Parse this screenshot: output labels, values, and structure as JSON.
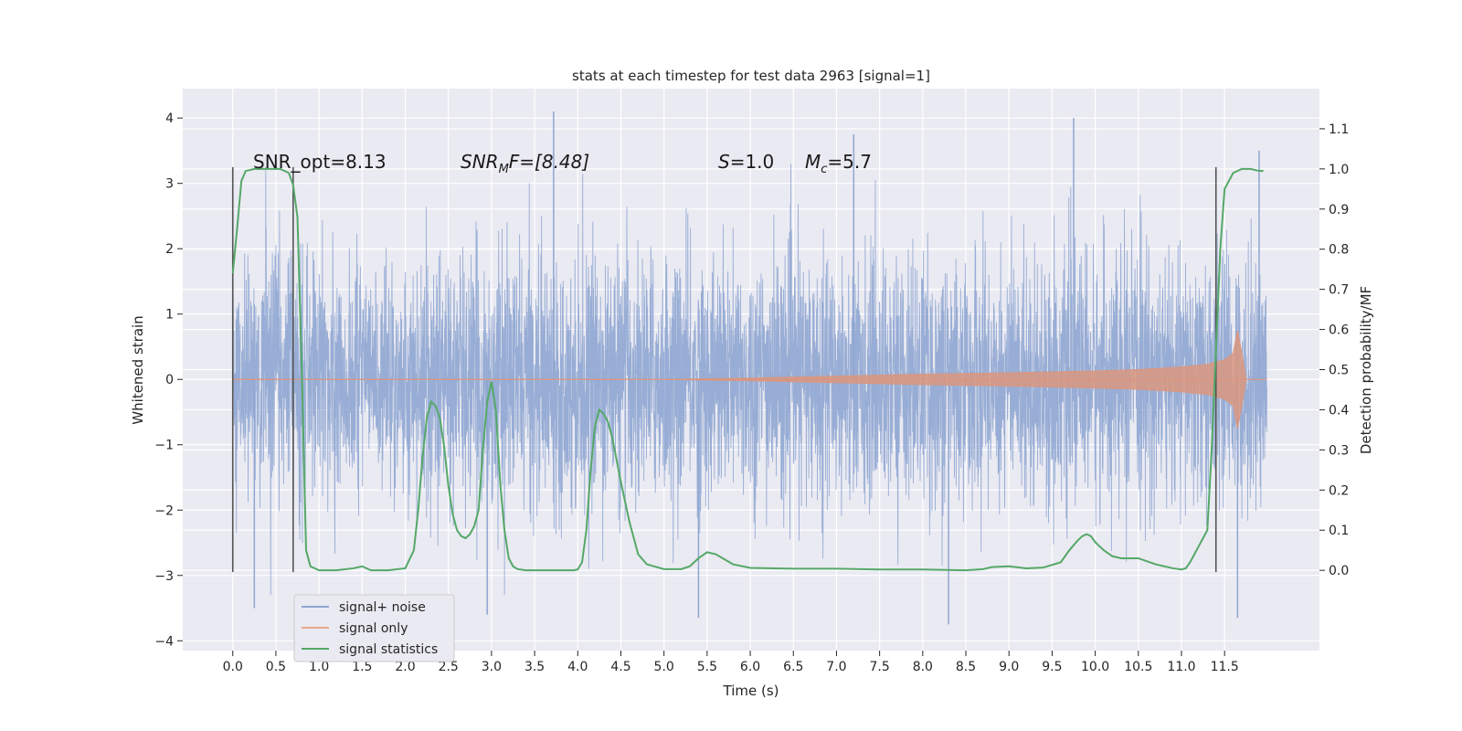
{
  "chart_data": {
    "type": "line",
    "title": "stats at each timestep for test data 2963 [signal=1]",
    "xlabel": "Time (s)",
    "ylabel_left": "Whitened strain",
    "ylabel_right": "Detection probability/MF",
    "xlim": [
      -0.58,
      12.6
    ],
    "ylim_left": [
      -4.15,
      4.45
    ],
    "ylim_right": [
      -0.2,
      1.2
    ],
    "xticks": [
      "0.0",
      "0.5",
      "1.0",
      "1.5",
      "2.0",
      "2.5",
      "3.0",
      "3.5",
      "4.0",
      "4.5",
      "5.0",
      "5.5",
      "6.0",
      "6.5",
      "7.0",
      "7.5",
      "8.0",
      "8.5",
      "9.0",
      "9.5",
      "10.0",
      "10.5",
      "11.0",
      "11.5"
    ],
    "yticks_left": [
      "4",
      "3",
      "2",
      "1",
      "0",
      "−1",
      "−2",
      "−3",
      "−4"
    ],
    "yticks_right": [
      "1.1",
      "1.0",
      "0.9",
      "0.8",
      "0.7",
      "0.6",
      "0.5",
      "0.4",
      "0.3",
      "0.2",
      "0.1",
      "0.0"
    ],
    "grid": true,
    "legend_placement": "lower-left",
    "annotations": {
      "snr_opt": "SNR_opt=8.13",
      "snr_mf_prefix": "SNR",
      "snr_mf_sub": "M",
      "snr_mf_rest": "F=[8.48]",
      "s_symbol": "S",
      "s_value": "=1.0",
      "mc_symbol": "M",
      "mc_sub": "c",
      "mc_value": "=5.7"
    },
    "series": [
      {
        "name": "signal+ noise",
        "color": "#8fa6d1",
        "description_units": "whitened strain, left axis",
        "x_range": [
          0.0,
          11.99
        ],
        "typical_envelope": [
          -2.4,
          2.4
        ],
        "extreme_values": [
          {
            "x": 0.25,
            "y": -3.5
          },
          {
            "x": 2.95,
            "y": -3.6
          },
          {
            "x": 3.72,
            "y": 4.1
          },
          {
            "x": 5.4,
            "y": -3.65
          },
          {
            "x": 7.2,
            "y": 3.75
          },
          {
            "x": 8.3,
            "y": -3.75
          },
          {
            "x": 9.75,
            "y": 4.0
          },
          {
            "x": 11.65,
            "y": -3.65
          },
          {
            "x": 11.9,
            "y": 3.5
          }
        ]
      },
      {
        "name": "signal only",
        "color": "#dd8452",
        "description_units": "whitened strain envelope, left axis",
        "x": [
          0.0,
          5.0,
          6.0,
          7.0,
          8.0,
          9.0,
          10.0,
          10.5,
          11.0,
          11.3,
          11.5,
          11.6,
          11.65,
          11.7,
          11.75
        ],
        "amplitude": [
          0.0,
          0.0,
          0.02,
          0.05,
          0.08,
          0.1,
          0.13,
          0.15,
          0.19,
          0.23,
          0.3,
          0.4,
          0.75,
          0.4,
          0.0
        ]
      },
      {
        "name": "signal statistics",
        "color": "#55a868",
        "description_units": "detection probability, right axis",
        "x": [
          0.0,
          0.05,
          0.1,
          0.15,
          0.25,
          0.4,
          0.55,
          0.65,
          0.7,
          0.75,
          0.8,
          0.85,
          0.9,
          1.0,
          1.2,
          1.4,
          1.5,
          1.6,
          1.8,
          2.0,
          2.1,
          2.15,
          2.2,
          2.25,
          2.3,
          2.35,
          2.4,
          2.45,
          2.5,
          2.55,
          2.6,
          2.65,
          2.7,
          2.75,
          2.8,
          2.85,
          2.9,
          2.95,
          3.0,
          3.05,
          3.1,
          3.15,
          3.2,
          3.25,
          3.3,
          3.4,
          3.6,
          3.8,
          3.95,
          4.0,
          4.05,
          4.1,
          4.15,
          4.2,
          4.25,
          4.3,
          4.35,
          4.4,
          4.5,
          4.6,
          4.7,
          4.8,
          5.0,
          5.2,
          5.3,
          5.4,
          5.5,
          5.6,
          5.8,
          6.0,
          6.5,
          7.0,
          7.5,
          8.0,
          8.5,
          8.7,
          8.8,
          9.0,
          9.2,
          9.4,
          9.6,
          9.7,
          9.8,
          9.85,
          9.9,
          9.95,
          10.0,
          10.1,
          10.2,
          10.3,
          10.5,
          10.7,
          10.9,
          11.0,
          11.05,
          11.1,
          11.15,
          11.2,
          11.25,
          11.3,
          11.35,
          11.4,
          11.45,
          11.5,
          11.6,
          11.7,
          11.8,
          11.9,
          11.95
        ],
        "y": [
          0.74,
          0.85,
          0.97,
          0.995,
          1.0,
          1.0,
          1.0,
          0.99,
          0.96,
          0.88,
          0.5,
          0.05,
          0.01,
          0.0,
          0.0,
          0.005,
          0.01,
          0.0,
          0.0,
          0.005,
          0.05,
          0.15,
          0.28,
          0.38,
          0.42,
          0.41,
          0.38,
          0.31,
          0.21,
          0.14,
          0.1,
          0.085,
          0.08,
          0.09,
          0.11,
          0.15,
          0.3,
          0.42,
          0.47,
          0.4,
          0.22,
          0.1,
          0.03,
          0.01,
          0.003,
          0.0,
          0.0,
          0.0,
          0.0,
          0.002,
          0.02,
          0.1,
          0.25,
          0.36,
          0.4,
          0.39,
          0.37,
          0.33,
          0.22,
          0.12,
          0.04,
          0.015,
          0.003,
          0.003,
          0.01,
          0.03,
          0.045,
          0.04,
          0.015,
          0.006,
          0.004,
          0.004,
          0.002,
          0.002,
          0.0,
          0.003,
          0.008,
          0.01,
          0.005,
          0.007,
          0.02,
          0.05,
          0.075,
          0.085,
          0.09,
          0.085,
          0.07,
          0.05,
          0.035,
          0.03,
          0.03,
          0.015,
          0.005,
          0.002,
          0.005,
          0.02,
          0.04,
          0.06,
          0.08,
          0.1,
          0.3,
          0.55,
          0.8,
          0.95,
          0.99,
          1.0,
          1.0,
          0.995,
          0.995
        ]
      }
    ],
    "vertical_markers": [
      {
        "x": 0.0,
        "y_range": [
          -2.95,
          3.25
        ],
        "color": "#555555"
      },
      {
        "x": 0.7,
        "y_range": [
          -2.95,
          3.25
        ],
        "color": "#555555"
      },
      {
        "x": 11.4,
        "y_range": [
          -2.95,
          3.25
        ],
        "color": "#555555"
      }
    ]
  }
}
